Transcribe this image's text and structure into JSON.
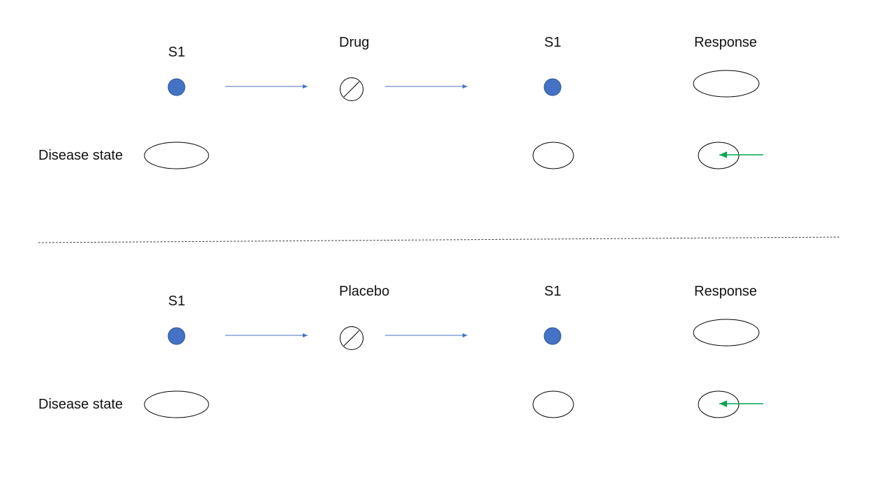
{
  "colors": {
    "signal_fill": "#4472c4",
    "flow_arrow": "#4472c4",
    "response_arrow": "#00a651",
    "outline": "#000000",
    "divider": "#444444"
  },
  "panels": [
    {
      "label_s1_start": "S1",
      "label_agent": "Drug",
      "label_s1_end": "S1",
      "label_response": "Response",
      "label_disease": "Disease state"
    },
    {
      "label_s1_start": "S1",
      "label_agent": "Placebo",
      "label_s1_end": "S1",
      "label_response": "Response",
      "label_disease": "Disease state"
    }
  ]
}
